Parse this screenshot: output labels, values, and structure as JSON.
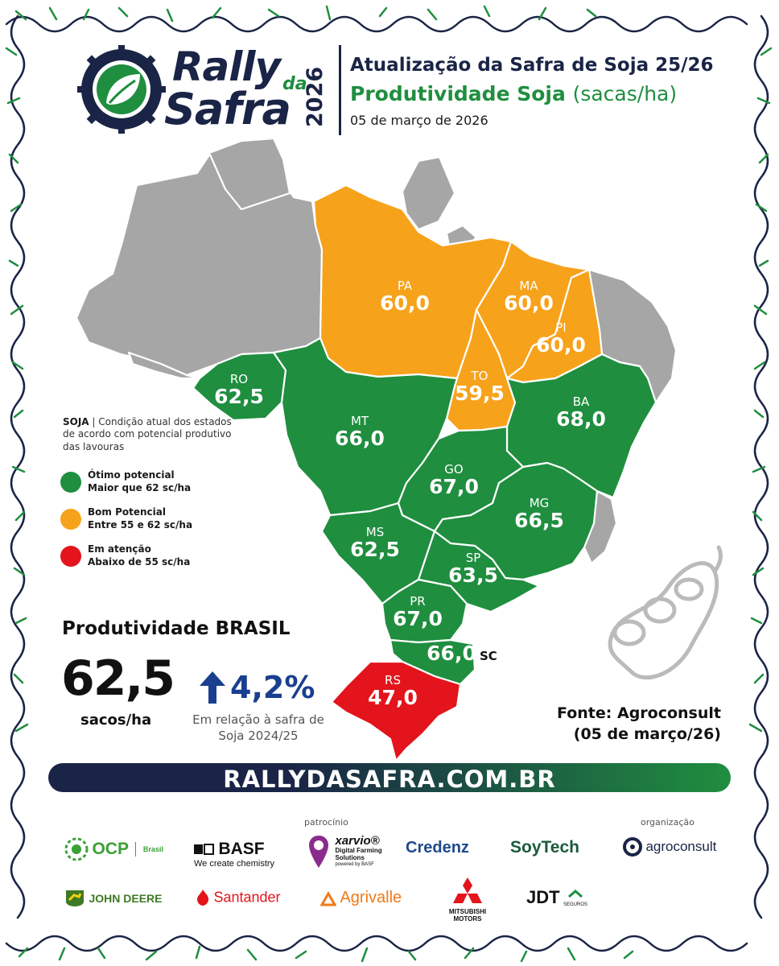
{
  "header": {
    "logo": {
      "line1": "Rally",
      "line2": "da",
      "line3": "Safra",
      "year": "2026"
    },
    "title": "Atualização da Safra de Soja 25/26",
    "subtitle": "Produtividade Soja",
    "subtitle_unit": "(sacas/ha)",
    "date": "05 de março de 2026"
  },
  "colors": {
    "otimo": "#1f8e3f",
    "bom": "#f7a21b",
    "atencao": "#e3141c",
    "sem_dados": "#a6a6a6",
    "navy": "#1a2446"
  },
  "states": [
    {
      "code": "PA",
      "value": "60,0",
      "category": "bom"
    },
    {
      "code": "MA",
      "value": "60,0",
      "category": "bom"
    },
    {
      "code": "PI",
      "value": "60,0",
      "category": "bom"
    },
    {
      "code": "TO",
      "value": "59,5",
      "category": "bom"
    },
    {
      "code": "RO",
      "value": "62,5",
      "category": "otimo"
    },
    {
      "code": "MT",
      "value": "66,0",
      "category": "otimo"
    },
    {
      "code": "BA",
      "value": "68,0",
      "category": "otimo"
    },
    {
      "code": "GO",
      "value": "67,0",
      "category": "otimo"
    },
    {
      "code": "MG",
      "value": "66,5",
      "category": "otimo"
    },
    {
      "code": "MS",
      "value": "62,5",
      "category": "otimo"
    },
    {
      "code": "SP",
      "value": "63,5",
      "category": "otimo"
    },
    {
      "code": "PR",
      "value": "67,0",
      "category": "otimo"
    },
    {
      "code": "SC",
      "value": "66,0",
      "category": "otimo"
    },
    {
      "code": "RS",
      "value": "47,0",
      "category": "atencao"
    }
  ],
  "legend": {
    "title_bold": "SOJA",
    "title_rest": " | Condição atual dos estados de acordo com potencial produtivo das lavouras",
    "items": [
      {
        "line1": "Ótimo potencial",
        "line2": "Maior que 62 sc/ha",
        "category": "otimo"
      },
      {
        "line1": "Bom Potencial",
        "line2": "Entre 55 e 62 sc/ha",
        "category": "bom"
      },
      {
        "line1": "Em atenção",
        "line2": "Abaixo de 55 sc/ha",
        "category": "atencao"
      }
    ]
  },
  "brasil": {
    "title": "Produtividade BRASIL",
    "value": "62,5",
    "unit": "sacos/ha",
    "change": "4,2%",
    "change_direction": "up",
    "note": "Em relação à safra de Soja 2024/25"
  },
  "source": {
    "line1": "Fonte: Agroconsult",
    "line2": "(05 de março/26)"
  },
  "banner": {
    "text": "RALLYDASAFRA.COM.BR"
  },
  "sponsors": {
    "patrocinio_label": "patrocínio",
    "organizacao_label": "organização",
    "row1": {
      "ocp": "OCP",
      "ocp_sub": "Brasil",
      "basf": "BASF",
      "basf_tag": "We create chemistry",
      "xarvio": "xarvio®",
      "xarvio_sub": "Digital Farming Solutions",
      "xarvio_tag": "powered by BASF",
      "credenz": "Credenz",
      "soytech": "SoyTech",
      "agroconsult": "agroconsult"
    },
    "row2": {
      "johndeere": "JOHN DEERE",
      "santander": "Santander",
      "agrivalle": "Agrivalle",
      "mitsubishi": "MITSUBISHI MOTORS",
      "jdt": "JDT",
      "jdt_sub": "SEGUROS"
    }
  }
}
